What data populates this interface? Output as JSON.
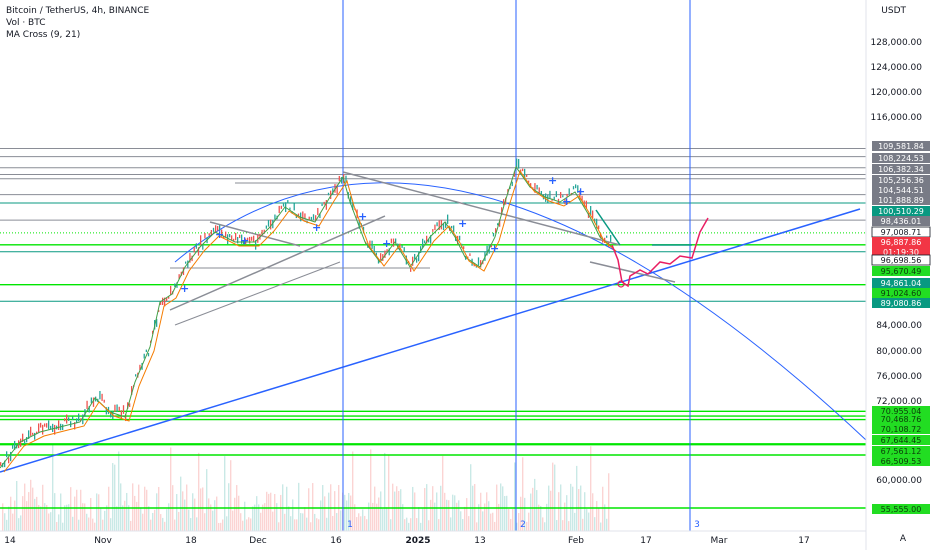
{
  "header": {
    "symbol_line": "Bitcoin / TetherUS, 4h, BINANCE",
    "volume_line": "Vol · BTC",
    "indicator_line": "MA Cross (9, 21)"
  },
  "price_axis": {
    "unit": "USDT",
    "ticks": [
      128000,
      124000,
      120000,
      116000,
      84000,
      80000,
      76000,
      72000,
      60000
    ],
    "tick_labels": [
      "128,000.00",
      "124,000.00",
      "120,000.00",
      "116,000.00",
      "84,000.00",
      "80,000.00",
      "76,000.00",
      "72,000.00",
      "60,000.00"
    ]
  },
  "time_axis": {
    "labels": [
      "14",
      "Nov",
      "18",
      "Dec",
      "16",
      "2025",
      "13",
      "Feb",
      "17",
      "Mar",
      "17"
    ],
    "scale_mode": "A"
  },
  "price_badges": [
    {
      "label": "109,581.84",
      "color": "#787b86"
    },
    {
      "label": "108,224.53",
      "color": "#787b86"
    },
    {
      "label": "106,382.34",
      "color": "#787b86"
    },
    {
      "label": "105,256.36",
      "color": "#787b86"
    },
    {
      "label": "104,544.51",
      "color": "#787b86"
    },
    {
      "label": "101,888.89",
      "color": "#787b86"
    },
    {
      "label": "100,510.29",
      "color": "#089981"
    },
    {
      "label": "98,436.01",
      "color": "#787b86"
    },
    {
      "label": "97,008.71",
      "color": "#ffffff"
    },
    {
      "label": "96,887.86",
      "color": "#f23645"
    },
    {
      "label": "01:19:30",
      "color": "#f23645"
    },
    {
      "label": "96,698.56",
      "color": "#ffffff"
    },
    {
      "label": "95,670.49",
      "color": "#22dd22"
    },
    {
      "label": "94,861.04",
      "color": "#089981"
    },
    {
      "label": "91,024.60",
      "color": "#22dd22"
    },
    {
      "label": "89,080.86",
      "color": "#089981"
    },
    {
      "label": "70,955.04",
      "color": "#22dd22"
    },
    {
      "label": "70,468.76",
      "color": "#22dd22"
    },
    {
      "label": "70,108.72",
      "color": "#22dd22"
    },
    {
      "label": "67,644.45",
      "color": "#22dd22"
    },
    {
      "label": "67,561.12",
      "color": "#22dd22"
    },
    {
      "label": "66,509.53",
      "color": "#22dd22"
    },
    {
      "label": "55,555.00",
      "color": "#22dd22"
    }
  ],
  "vertical_markers": [
    "1",
    "2",
    "3"
  ],
  "colors": {
    "up": "#26a69a",
    "down": "#ef5350",
    "ma_fast": "#43a047",
    "ma_slow": "#f57c00",
    "trend_blue": "#2962ff",
    "support_green": "#00e600",
    "forecast_red": "#e91e63"
  }
}
